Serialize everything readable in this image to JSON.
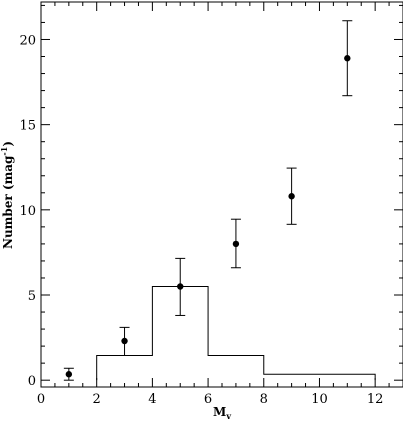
{
  "chart_data": {
    "type": "scatter",
    "title": "",
    "xlabel": "M",
    "xlabel_sub": "v",
    "ylabel_main": "Number  (mag",
    "ylabel_sup": "-1",
    "ylabel_end": ")",
    "xlim": [
      0,
      13
    ],
    "ylim": [
      -0.4,
      22.2
    ],
    "grid": false,
    "legend": "none",
    "x_ticks": [
      0,
      2,
      4,
      6,
      8,
      10,
      12
    ],
    "y_ticks": [
      0,
      5,
      10,
      15,
      20
    ],
    "series": [
      {
        "kind": "points-with-errorbars",
        "points": [
          {
            "x": 1,
            "y": 0.35,
            "err_low": 0.35,
            "err_high": 0.35
          },
          {
            "x": 3,
            "y": 2.3,
            "err_low": 0.85,
            "err_high": 0.8
          },
          {
            "x": 5,
            "y": 5.5,
            "err_low": 1.7,
            "err_high": 1.65
          },
          {
            "x": 7,
            "y": 8.0,
            "err_low": 1.4,
            "err_high": 1.45
          },
          {
            "x": 9,
            "y": 10.8,
            "err_low": 1.65,
            "err_high": 1.65
          },
          {
            "x": 11,
            "y": 18.9,
            "err_low": 2.2,
            "err_high": 2.2
          }
        ]
      },
      {
        "kind": "histogram-step",
        "bins": [
          {
            "x0": 2,
            "x1": 4,
            "y": 1.45
          },
          {
            "x0": 4,
            "x1": 6,
            "y": 5.5
          },
          {
            "x0": 6,
            "x1": 8,
            "y": 1.45
          },
          {
            "x0": 8,
            "x1": 12,
            "y": 0.35
          }
        ]
      }
    ]
  }
}
